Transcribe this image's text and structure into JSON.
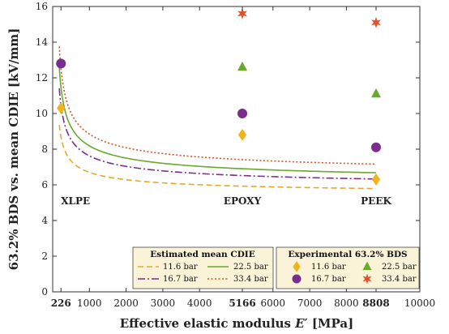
{
  "chart_data": {
    "type": "line",
    "xlabel_prefix": "Effective elastic modulus ",
    "xlabel_var": "E′",
    "xlabel_suffix": " [MPa]",
    "ylabel": "63.2% BDS vs. mean CDIE [kV/mm]",
    "xlim": [
      0,
      10000
    ],
    "ylim": [
      0,
      16
    ],
    "x_ticks": [
      {
        "value": 226,
        "label": "226",
        "bold": true
      },
      {
        "value": 1000,
        "label": "1000",
        "bold": false
      },
      {
        "value": 2000,
        "label": "2000",
        "bold": false
      },
      {
        "value": 3000,
        "label": "3000",
        "bold": false
      },
      {
        "value": 4000,
        "label": "4000",
        "bold": false
      },
      {
        "value": 5166,
        "label": "5166",
        "bold": true
      },
      {
        "value": 6000,
        "label": "6000",
        "bold": false
      },
      {
        "value": 7000,
        "label": "7000",
        "bold": false
      },
      {
        "value": 8000,
        "label": "8000",
        "bold": false
      },
      {
        "value": 8808,
        "label": "8808",
        "bold": true
      },
      {
        "value": 10000,
        "label": "10000",
        "bold": false
      }
    ],
    "y_ticks": [
      0,
      2,
      4,
      6,
      8,
      10,
      12,
      14,
      16
    ],
    "annotations": [
      {
        "text": "XLPE",
        "x": 226,
        "y": 4.9,
        "anchor": "start"
      },
      {
        "text": "EPOXY",
        "x": 5166,
        "y": 4.9,
        "anchor": "middle"
      },
      {
        "text": "PEEK",
        "x": 8808,
        "y": 4.9,
        "anchor": "middle"
      }
    ],
    "curve_model": {
      "y_inf": [
        5.35,
        5.7,
        5.95,
        6.35
      ],
      "amp": [
        1.3,
        1.85,
        2.15,
        2.4
      ],
      "x0": 75,
      "x_start": 180,
      "x_end": 8808
    },
    "series": [
      {
        "name": "11.6 bar",
        "pressure": 11.6,
        "color": "#E5A92A",
        "dash": "7,4",
        "sample_x": [
          226,
          1000,
          2000,
          3000,
          4000,
          5166,
          6000,
          7000,
          8000,
          8808
        ],
        "sample_y": [
          9.5,
          6.9,
          6.3,
          6.0,
          5.8,
          5.7,
          5.6,
          5.5,
          5.45,
          5.4
        ]
      },
      {
        "name": "16.7 bar",
        "pressure": 16.7,
        "color": "#7B2D8E",
        "dash": "9,3,2,3",
        "sample_x": [
          226,
          1000,
          2000,
          3000,
          4000,
          5166,
          6000,
          7000,
          8000,
          8808
        ],
        "sample_y": [
          11.0,
          7.7,
          6.9,
          6.5,
          6.3,
          6.1,
          6.0,
          5.9,
          5.85,
          5.8
        ]
      },
      {
        "name": "22.5 bar",
        "pressure": 22.5,
        "color": "#6AA82E",
        "dash": "",
        "sample_x": [
          226,
          1000,
          2000,
          3000,
          4000,
          5166,
          6000,
          7000,
          8000,
          8808
        ],
        "sample_y": [
          11.9,
          8.2,
          7.3,
          6.9,
          6.6,
          6.4,
          6.3,
          6.2,
          6.1,
          6.05
        ]
      },
      {
        "name": "33.4 bar",
        "pressure": 33.4,
        "color": "#D9531E",
        "dash": "2,2.5",
        "sample_x": [
          226,
          1000,
          2000,
          3000,
          4000,
          5166,
          6000,
          7000,
          8000,
          8808
        ],
        "sample_y": [
          12.8,
          8.9,
          7.9,
          7.4,
          7.1,
          6.8,
          6.6,
          6.5,
          6.45,
          6.4
        ]
      }
    ],
    "experimental": [
      {
        "name": "11.6 bar",
        "marker": "diamond",
        "color": "#F2B21B",
        "points": [
          {
            "x": 226,
            "y": 10.3
          },
          {
            "x": 5166,
            "y": 8.8
          },
          {
            "x": 8808,
            "y": 6.3
          }
        ]
      },
      {
        "name": "16.7 bar",
        "marker": "circle",
        "color": "#7B2D8E",
        "points": [
          {
            "x": 226,
            "y": 12.8
          },
          {
            "x": 5166,
            "y": 10.0
          },
          {
            "x": 8808,
            "y": 8.1
          }
        ]
      },
      {
        "name": "22.5 bar",
        "marker": "triangle",
        "color": "#6AA82E",
        "points": [
          {
            "x": 5166,
            "y": 12.6
          },
          {
            "x": 8808,
            "y": 11.1
          }
        ]
      },
      {
        "name": "33.4 bar",
        "marker": "star",
        "color": "#E0532A",
        "points": [
          {
            "x": 5166,
            "y": 15.6
          },
          {
            "x": 8808,
            "y": 15.1
          }
        ]
      }
    ],
    "legends": {
      "estimated_title": "Estimated mean CDIE",
      "experimental_title": "Experimental 63.2% BDS",
      "background": "#FBF3D8"
    },
    "grid": false
  }
}
